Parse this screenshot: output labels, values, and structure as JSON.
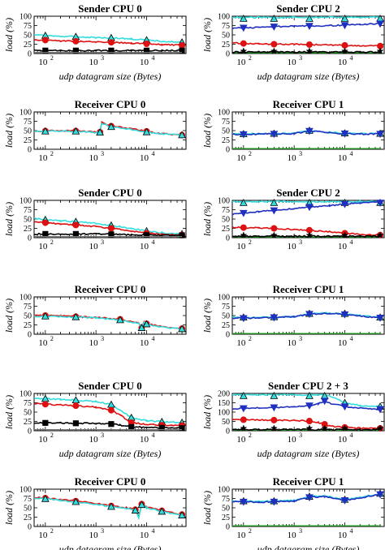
{
  "figure": {
    "x_axis_label": "udp datagram size (Bytes)",
    "y_axis_label": "load (%)",
    "x_ticks": [
      "10^2",
      "10^3",
      "10^4"
    ],
    "colors": {
      "cyan": "#33dddd",
      "blue": "#1f2fbf",
      "red": "#dd1111",
      "black": "#000000",
      "green": "#22aa22",
      "grey": "#777777"
    }
  },
  "chart_data": [
    {
      "panel": "row1-left",
      "type": "line",
      "title": "Sender CPU 0",
      "ylim": [
        0,
        100
      ],
      "yticks": [
        0,
        25,
        50,
        75,
        100
      ],
      "show_xlabel": true,
      "x": [
        60,
        100,
        200,
        400,
        1000,
        2000,
        5000,
        10000,
        20000,
        50000
      ],
      "series": [
        {
          "color_key": "cyan",
          "marker": "triangle",
          "values": [
            50,
            48,
            46,
            45,
            43,
            42,
            39,
            36,
            33,
            30
          ]
        },
        {
          "color_key": "red",
          "marker": "circle",
          "values": [
            37,
            36,
            34,
            33,
            31,
            30,
            28,
            26,
            24,
            22
          ]
        },
        {
          "color_key": "black",
          "marker": "square",
          "values": [
            8,
            8,
            8,
            8,
            8,
            8,
            8,
            8,
            8,
            8
          ]
        },
        {
          "color_key": "grey",
          "marker": "none",
          "values": [
            3,
            3,
            3,
            3,
            3,
            3,
            3,
            3,
            3,
            3
          ]
        }
      ]
    },
    {
      "panel": "row1-right",
      "type": "line",
      "title": "Sender CPU 2",
      "ylim": [
        0,
        100
      ],
      "yticks": [
        0,
        25,
        50,
        75,
        100
      ],
      "show_xlabel": true,
      "x": [
        60,
        100,
        200,
        400,
        1000,
        2000,
        5000,
        10000,
        20000,
        50000
      ],
      "series": [
        {
          "color_key": "cyan",
          "marker": "triangle",
          "values": [
            97,
            97,
            97,
            97,
            97,
            97,
            97,
            97,
            97,
            97
          ]
        },
        {
          "color_key": "blue",
          "marker": "downtriangle",
          "values": [
            68,
            69,
            70,
            72,
            73,
            74,
            75,
            76,
            78,
            80
          ]
        },
        {
          "color_key": "red",
          "marker": "circle",
          "values": [
            28,
            27,
            26,
            25,
            25,
            24,
            23,
            22,
            21,
            20
          ]
        },
        {
          "color_key": "green",
          "marker": "none",
          "values": [
            2,
            2,
            2,
            2,
            2,
            2,
            2,
            2,
            2,
            2
          ]
        },
        {
          "color_key": "black",
          "marker": "star",
          "values": [
            4,
            4,
            4,
            4,
            4,
            4,
            4,
            4,
            4,
            4
          ]
        }
      ]
    },
    {
      "panel": "row2-left",
      "type": "line",
      "title": "Receiver CPU 0",
      "ylim": [
        0,
        100
      ],
      "yticks": [
        0,
        25,
        50,
        75,
        100
      ],
      "show_xlabel": false,
      "x": [
        60,
        100,
        200,
        400,
        800,
        1200,
        1300,
        2000,
        5000,
        10000,
        20000,
        50000
      ],
      "series": [
        {
          "color_key": "red",
          "marker": "circle",
          "values": [
            48,
            49,
            50,
            49,
            47,
            46,
            72,
            62,
            55,
            48,
            42,
            38
          ]
        },
        {
          "color_key": "cyan",
          "marker": "triangle",
          "values": [
            47,
            48,
            49,
            48,
            46,
            45,
            70,
            60,
            53,
            46,
            41,
            38
          ]
        }
      ]
    },
    {
      "panel": "row2-right",
      "type": "line",
      "title": "Receiver CPU 1",
      "ylim": [
        0,
        100
      ],
      "yticks": [
        0,
        25,
        50,
        75,
        100
      ],
      "show_xlabel": false,
      "x": [
        60,
        100,
        200,
        400,
        1000,
        2000,
        5000,
        10000,
        20000,
        50000
      ],
      "series": [
        {
          "color_key": "cyan",
          "marker": "triangle",
          "values": [
            41,
            41,
            42,
            42,
            43,
            50,
            45,
            43,
            42,
            42
          ]
        },
        {
          "color_key": "blue",
          "marker": "downtriangle",
          "values": [
            40,
            40,
            41,
            41,
            42,
            49,
            44,
            42,
            41,
            41
          ]
        },
        {
          "color_key": "green",
          "marker": "none",
          "values": [
            2,
            2,
            2,
            2,
            2,
            2,
            2,
            2,
            2,
            2
          ]
        }
      ]
    },
    {
      "panel": "row3-left",
      "type": "line",
      "title": "Sender CPU 0",
      "ylim": [
        0,
        100
      ],
      "yticks": [
        0,
        25,
        50,
        75,
        100
      ],
      "show_xlabel": false,
      "x": [
        60,
        100,
        200,
        400,
        1000,
        2000,
        5000,
        10000,
        20000,
        50000
      ],
      "series": [
        {
          "color_key": "cyan",
          "marker": "triangle",
          "values": [
            52,
            48,
            45,
            43,
            38,
            33,
            25,
            18,
            13,
            10
          ]
        },
        {
          "color_key": "red",
          "marker": "circle",
          "values": [
            42,
            40,
            37,
            34,
            30,
            25,
            18,
            12,
            9,
            7
          ]
        },
        {
          "color_key": "black",
          "marker": "square",
          "values": [
            10,
            10,
            10,
            10,
            10,
            9,
            8,
            7,
            6,
            5
          ]
        },
        {
          "color_key": "grey",
          "marker": "none",
          "values": [
            3,
            3,
            3,
            3,
            3,
            3,
            3,
            3,
            3,
            3
          ]
        }
      ]
    },
    {
      "panel": "row3-right",
      "type": "line",
      "title": "Sender CPU 2",
      "ylim": [
        0,
        100
      ],
      "yticks": [
        0,
        25,
        50,
        75,
        100
      ],
      "show_xlabel": false,
      "x": [
        60,
        100,
        200,
        400,
        1000,
        2000,
        5000,
        10000,
        20000,
        50000
      ],
      "series": [
        {
          "color_key": "cyan",
          "marker": "triangle",
          "values": [
            97,
            97,
            97,
            97,
            97,
            97,
            97,
            97,
            97,
            97
          ]
        },
        {
          "color_key": "blue",
          "marker": "downtriangle",
          "values": [
            62,
            66,
            70,
            73,
            78,
            82,
            86,
            90,
            93,
            95
          ]
        },
        {
          "color_key": "red",
          "marker": "circle",
          "values": [
            28,
            27,
            26,
            25,
            22,
            20,
            16,
            12,
            9,
            7
          ]
        },
        {
          "color_key": "green",
          "marker": "none",
          "values": [
            2,
            2,
            2,
            2,
            2,
            2,
            2,
            2,
            2,
            2
          ]
        },
        {
          "color_key": "black",
          "marker": "star",
          "values": [
            4,
            4,
            4,
            4,
            4,
            4,
            4,
            4,
            4,
            4
          ]
        }
      ]
    },
    {
      "panel": "row4-left",
      "type": "line",
      "title": "Receiver CPU 0",
      "ylim": [
        0,
        100
      ],
      "yticks": [
        0,
        25,
        50,
        75,
        100
      ],
      "show_xlabel": false,
      "x": [
        60,
        100,
        200,
        400,
        1000,
        3000,
        7000,
        8000,
        9000,
        10000,
        20000,
        50000
      ],
      "series": [
        {
          "color_key": "red",
          "marker": "circle",
          "values": [
            50,
            50,
            49,
            47,
            45,
            40,
            30,
            18,
            35,
            28,
            20,
            15
          ]
        },
        {
          "color_key": "cyan",
          "marker": "triangle",
          "values": [
            48,
            48,
            47,
            46,
            44,
            38,
            29,
            17,
            33,
            27,
            19,
            14
          ]
        }
      ]
    },
    {
      "panel": "row4-right",
      "type": "line",
      "title": "Receiver CPU 1",
      "ylim": [
        0,
        100
      ],
      "yticks": [
        0,
        25,
        50,
        75,
        100
      ],
      "show_xlabel": false,
      "x": [
        60,
        100,
        200,
        400,
        1000,
        2000,
        5000,
        10000,
        20000,
        50000
      ],
      "series": [
        {
          "color_key": "cyan",
          "marker": "triangle",
          "values": [
            45,
            45,
            45,
            46,
            47,
            55,
            57,
            55,
            50,
            45
          ]
        },
        {
          "color_key": "blue",
          "marker": "downtriangle",
          "values": [
            43,
            43,
            44,
            45,
            46,
            54,
            56,
            53,
            49,
            44
          ]
        },
        {
          "color_key": "green",
          "marker": "none",
          "values": [
            2,
            2,
            2,
            2,
            2,
            2,
            2,
            2,
            2,
            2
          ]
        }
      ]
    },
    {
      "panel": "row5-left",
      "type": "line",
      "title": "Sender CPU 0",
      "ylim": [
        0,
        100
      ],
      "yticks": [
        0,
        25,
        50,
        75,
        100
      ],
      "show_xlabel": true,
      "x": [
        60,
        100,
        200,
        400,
        1000,
        2000,
        3000,
        5000,
        10000,
        20000,
        50000
      ],
      "series": [
        {
          "color_key": "cyan",
          "marker": "triangle",
          "values": [
            88,
            86,
            84,
            82,
            78,
            70,
            55,
            35,
            27,
            24,
            22
          ]
        },
        {
          "color_key": "red",
          "marker": "circle",
          "values": [
            73,
            71,
            69,
            67,
            63,
            55,
            42,
            22,
            17,
            15,
            14
          ]
        },
        {
          "color_key": "black",
          "marker": "square",
          "values": [
            21,
            21,
            21,
            20,
            20,
            18,
            15,
            10,
            9,
            8,
            7
          ]
        },
        {
          "color_key": "grey",
          "marker": "none",
          "values": [
            3,
            3,
            3,
            3,
            3,
            3,
            3,
            3,
            3,
            3,
            3
          ]
        }
      ]
    },
    {
      "panel": "row5-right",
      "type": "line",
      "title": "Sender CPU 2 + 3",
      "ylim": [
        0,
        200
      ],
      "yticks": [
        0,
        50,
        100,
        150,
        200
      ],
      "show_xlabel": true,
      "x": [
        60,
        100,
        200,
        400,
        1000,
        2000,
        3000,
        4000,
        5000,
        10000,
        20000,
        50000
      ],
      "series": [
        {
          "color_key": "cyan",
          "marker": "triangle",
          "values": [
            193,
            193,
            193,
            193,
            193,
            193,
            193,
            192,
            185,
            150,
            135,
            130
          ]
        },
        {
          "color_key": "blue",
          "marker": "downtriangle",
          "values": [
            118,
            120,
            122,
            125,
            128,
            135,
            145,
            160,
            148,
            130,
            122,
            115
          ]
        },
        {
          "color_key": "red",
          "marker": "circle",
          "values": [
            60,
            59,
            58,
            57,
            55,
            52,
            45,
            35,
            25,
            18,
            14,
            12
          ]
        },
        {
          "color_key": "green",
          "marker": "none",
          "values": [
            3,
            3,
            3,
            3,
            3,
            3,
            3,
            3,
            3,
            3,
            3,
            3
          ]
        },
        {
          "color_key": "black",
          "marker": "star",
          "values": [
            6,
            6,
            6,
            6,
            6,
            6,
            6,
            6,
            6,
            6,
            6,
            6
          ]
        }
      ]
    },
    {
      "panel": "row6-left",
      "type": "line",
      "title": "Receiver CPU 0",
      "ylim": [
        0,
        100
      ],
      "yticks": [
        0,
        25,
        50,
        75,
        100
      ],
      "show_xlabel": true,
      "x": [
        60,
        100,
        200,
        400,
        1000,
        2000,
        4000,
        6000,
        7000,
        8000,
        10000,
        20000,
        50000
      ],
      "series": [
        {
          "color_key": "red",
          "marker": "circle",
          "values": [
            78,
            76,
            72,
            68,
            62,
            55,
            50,
            45,
            25,
            60,
            52,
            42,
            32
          ]
        },
        {
          "color_key": "cyan",
          "marker": "triangle",
          "values": [
            75,
            74,
            70,
            66,
            60,
            53,
            48,
            43,
            24,
            58,
            50,
            40,
            30
          ]
        }
      ]
    },
    {
      "panel": "row6-right",
      "type": "line",
      "title": "Receiver CPU 1",
      "ylim": [
        0,
        100
      ],
      "yticks": [
        0,
        25,
        50,
        75,
        100
      ],
      "show_xlabel": true,
      "x": [
        60,
        100,
        200,
        400,
        1000,
        2000,
        4000,
        10000,
        20000,
        50000
      ],
      "series": [
        {
          "color_key": "cyan",
          "marker": "triangle",
          "values": [
            68,
            68,
            67,
            68,
            70,
            80,
            82,
            72,
            78,
            88
          ]
        },
        {
          "color_key": "blue",
          "marker": "downtriangle",
          "values": [
            66,
            66,
            65,
            66,
            68,
            78,
            80,
            70,
            76,
            86
          ]
        },
        {
          "color_key": "green",
          "marker": "none",
          "values": [
            2,
            2,
            2,
            2,
            2,
            2,
            2,
            2,
            2,
            2
          ]
        }
      ]
    }
  ]
}
